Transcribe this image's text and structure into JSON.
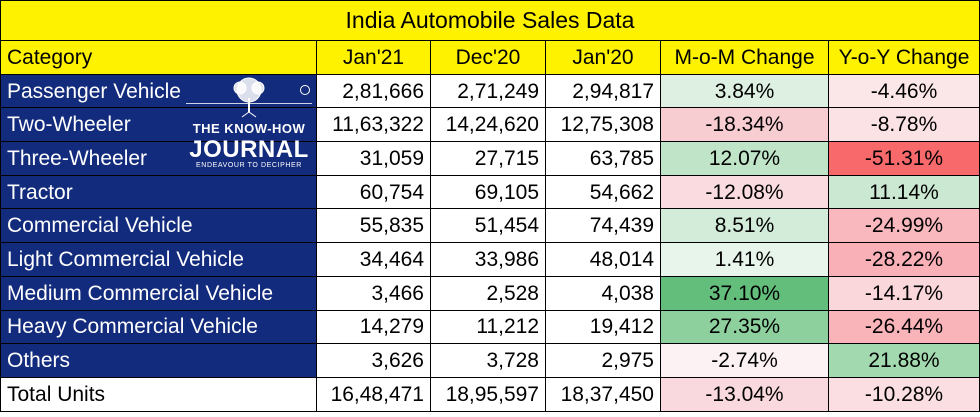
{
  "title": "India Automobile Sales Data",
  "columns": [
    "Category",
    "Jan'21",
    "Dec'20",
    "Jan'20",
    "M-o-M Change",
    "Y-o-Y Change"
  ],
  "rows": [
    {
      "category": "Passenger Vehicle",
      "jan21": "2,81,666",
      "dec20": "2,71,249",
      "jan20": "2,94,817",
      "mom": "3.84%",
      "yoy": "-4.46%",
      "mom_color": "#DDF0E2",
      "yoy_color": "#FBE6E8"
    },
    {
      "category": "Two-Wheeler",
      "jan21": "11,63,322",
      "dec20": "14,24,620",
      "jan20": "12,75,308",
      "mom": "-18.34%",
      "yoy": "-8.78%",
      "mom_color": "#F8CDD2",
      "yoy_color": "#FBE2E5"
    },
    {
      "category": "Three-Wheeler",
      "jan21": "31,059",
      "dec20": "27,715",
      "jan20": "63,785",
      "mom": "12.07%",
      "yoy": "-51.31%",
      "mom_color": "#BFE4C7",
      "yoy_color": "#F8696B"
    },
    {
      "category": "Tractor",
      "jan21": "60,754",
      "dec20": "69,105",
      "jan20": "54,662",
      "mom": "-12.08%",
      "yoy": "11.14%",
      "mom_color": "#FADCE0",
      "yoy_color": "#CBE9D2"
    },
    {
      "category": "Commercial Vehicle",
      "jan21": "55,835",
      "dec20": "51,454",
      "jan20": "74,439",
      "mom": "8.51%",
      "yoy": "-24.99%",
      "mom_color": "#D2ECD9",
      "yoy_color": "#F9B8BE"
    },
    {
      "category": "Light Commercial Vehicle",
      "jan21": "34,464",
      "dec20": "33,986",
      "jan20": "48,014",
      "mom": "1.41%",
      "yoy": "-28.22%",
      "mom_color": "#E8F5EB",
      "yoy_color": "#F9B1B7"
    },
    {
      "category": "Medium Commercial Vehicle",
      "jan21": "3,466",
      "dec20": "2,528",
      "jan20": "4,038",
      "mom": "37.10%",
      "yoy": "-14.17%",
      "mom_color": "#63BE7B",
      "yoy_color": "#FAD7DB"
    },
    {
      "category": "Heavy Commercial Vehicle",
      "jan21": "14,279",
      "dec20": "11,212",
      "jan20": "19,412",
      "mom": "27.35%",
      "yoy": "-26.44%",
      "mom_color": "#8DD09D",
      "yoy_color": "#F9B4BA"
    },
    {
      "category": "Others",
      "jan21": "3,626",
      "dec20": "3,728",
      "jan20": "2,975",
      "mom": "-2.74%",
      "yoy": "21.88%",
      "mom_color": "#FDF2F3",
      "yoy_color": "#A3D9AF"
    },
    {
      "category": "Total Units",
      "jan21": "16,48,471",
      "dec20": "18,95,597",
      "jan20": "18,37,450",
      "mom": "-13.04%",
      "yoy": "-10.28%",
      "mom_color": "#F9D9DD",
      "yoy_color": "#FADEE1"
    }
  ],
  "logo": {
    "line1": "THE KNOW-HOW",
    "line2": "JOURNAL",
    "line3": "ENDEAVOUR TO DECIPHER"
  },
  "colors": {
    "header_bg": "#FFF200",
    "category_bg": "#132B7C",
    "category_text": "#FFFFFF"
  },
  "icons": {
    "logo_tree": "tree-icon",
    "registered": "registered-mark-icon"
  }
}
